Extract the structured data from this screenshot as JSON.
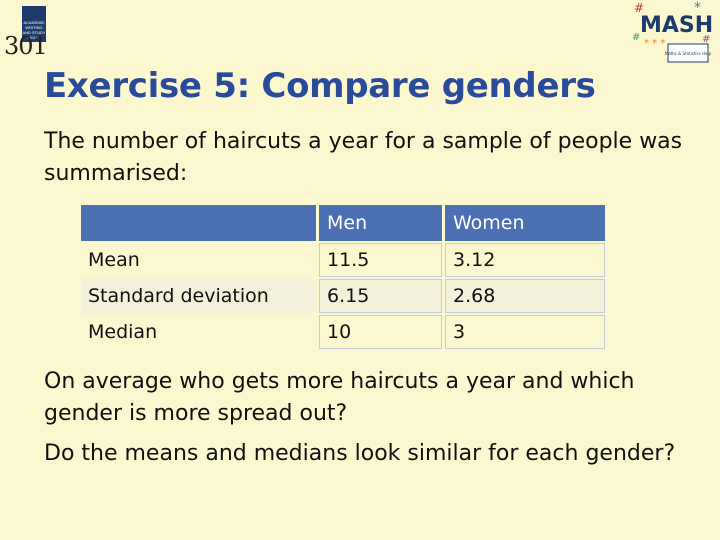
{
  "logo_left": {
    "badge_text": "ACADEMIC WRITING AND STUDY SKILLS",
    "number": "301"
  },
  "logo_right": {
    "name": "MASH",
    "tagline": "Maths & Statistics Help"
  },
  "title": "Exercise 5: Compare genders",
  "intro": "The number of haircuts a year for a sample of people was summarised:",
  "table": {
    "headers": [
      "",
      "Men",
      "Women"
    ],
    "rows": [
      {
        "label": "Mean",
        "men": "11.5",
        "women": "3.12"
      },
      {
        "label": "Standard deviation",
        "men": "6.15",
        "women": "2.68"
      },
      {
        "label": "Median",
        "men": "10",
        "women": "3"
      }
    ]
  },
  "question1": "On average who gets more haircuts a year and which gender is more spread out?",
  "question2": "Do the means and medians look similar for each gender?",
  "colors": {
    "title": "#2a4a9a",
    "header_bg": "#4a6fb3",
    "background": "#fbf8cf"
  }
}
